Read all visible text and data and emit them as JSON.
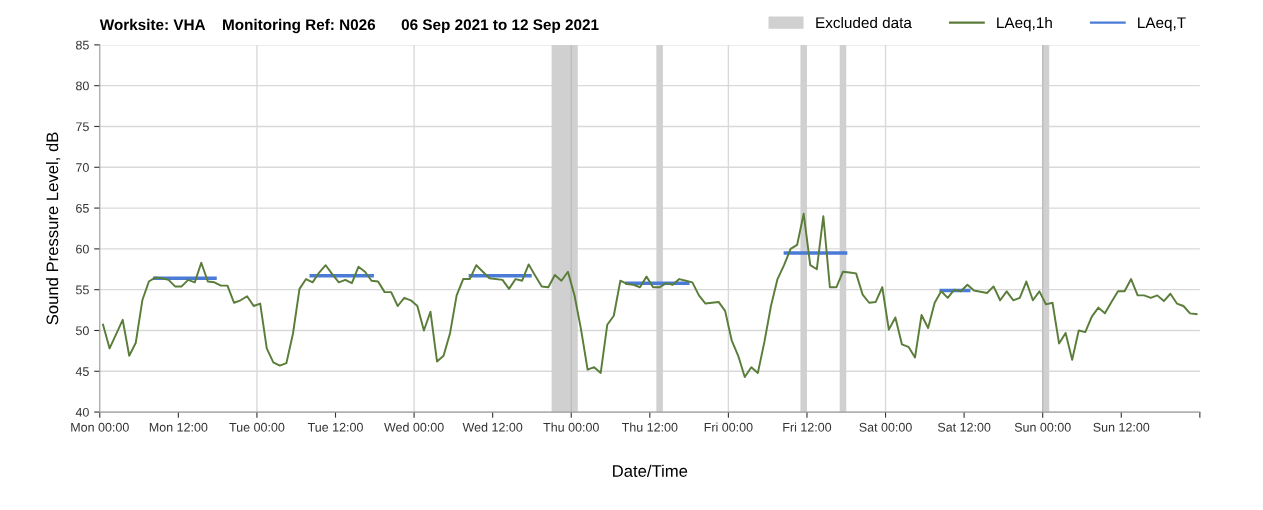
{
  "chart_data": {
    "type": "line",
    "title": "Worksite: VHA    Monitoring Ref: N026      06 Sep 2021 to 12 Sep 2021",
    "xlabel": "Date/Time",
    "ylabel": "Sound Pressure Level, dB",
    "xlim": [
      "2021-09-06T00:00",
      "2021-09-13T00:00"
    ],
    "xticks": [
      {
        "value": "2021-09-06T00:00",
        "label": "Mon 00:00"
      },
      {
        "value": "2021-09-06T12:00",
        "label": "Mon 12:00"
      },
      {
        "value": "2021-09-07T00:00",
        "label": "Tue 00:00"
      },
      {
        "value": "2021-09-07T12:00",
        "label": "Tue 12:00"
      },
      {
        "value": "2021-09-08T00:00",
        "label": "Wed 00:00"
      },
      {
        "value": "2021-09-08T12:00",
        "label": "Wed 12:00"
      },
      {
        "value": "2021-09-09T00:00",
        "label": "Thu 00:00"
      },
      {
        "value": "2021-09-09T12:00",
        "label": "Thu 12:00"
      },
      {
        "value": "2021-09-10T00:00",
        "label": "Fri 00:00"
      },
      {
        "value": "2021-09-10T12:00",
        "label": "Fri 12:00"
      },
      {
        "value": "2021-09-11T00:00",
        "label": "Sat 00:00"
      },
      {
        "value": "2021-09-11T12:00",
        "label": "Sat 12:00"
      },
      {
        "value": "2021-09-12T00:00",
        "label": "Sun 00:00"
      },
      {
        "value": "2021-09-12T12:00",
        "label": "Sun 12:00"
      },
      {
        "value": "2021-09-13T00:00",
        "label": null
      }
    ],
    "ylim": [
      40,
      85
    ],
    "yticks": [
      40,
      45,
      50,
      55,
      60,
      65,
      70,
      75,
      80,
      85
    ],
    "grid": "y",
    "legend": "top right",
    "marker": "none",
    "line_style": "solid",
    "ref_lines": [
      {
        "axis": "x",
        "value": "2021-09-07T00:00",
        "label": null,
        "color": "#d9d9d9"
      },
      {
        "axis": "x",
        "value": "2021-09-08T00:00",
        "label": null,
        "color": "#d9d9d9"
      },
      {
        "axis": "x",
        "value": "2021-09-09T00:00",
        "label": null,
        "color": "#bdbdbd"
      },
      {
        "axis": "x",
        "value": "2021-09-10T00:00",
        "label": null,
        "color": "#d9d9d9"
      },
      {
        "axis": "x",
        "value": "2021-09-11T00:00",
        "label": null,
        "color": "#d9d9d9"
      },
      {
        "axis": "x",
        "value": "2021-09-12T00:00",
        "label": null,
        "color": "#bdbdbd"
      }
    ],
    "bands": [
      {
        "axis": "x",
        "from": "2021-09-08T21:00",
        "to": "2021-09-09T01:00",
        "label": "Excluded data",
        "color": "#d0d0d0"
      },
      {
        "axis": "x",
        "from": "2021-09-09T13:00",
        "to": "2021-09-09T14:00",
        "label": null,
        "color": "#d0d0d0"
      },
      {
        "axis": "x",
        "from": "2021-09-10T11:00",
        "to": "2021-09-10T12:00",
        "label": null,
        "color": "#d0d0d0"
      },
      {
        "axis": "x",
        "from": "2021-09-10T17:00",
        "to": "2021-09-10T18:00",
        "label": null,
        "color": "#d0d0d0"
      },
      {
        "axis": "x",
        "from": "2021-09-12T00:00",
        "to": "2021-09-12T01:00",
        "label": null,
        "color": "#d0d0d0"
      }
    ],
    "series": [
      {
        "name": "LAeq,1h",
        "color": "#5b7d3a",
        "x": [
          "2021-09-06T00:30",
          "2021-09-06T01:30",
          "2021-09-06T03:30",
          "2021-09-06T04:30",
          "2021-09-06T05:30",
          "2021-09-06T06:30",
          "2021-09-06T07:30",
          "2021-09-06T08:30",
          "2021-09-06T09:30",
          "2021-09-06T10:30",
          "2021-09-06T11:30",
          "2021-09-06T12:30",
          "2021-09-06T13:30",
          "2021-09-06T14:30",
          "2021-09-06T15:30",
          "2021-09-06T16:30",
          "2021-09-06T17:30",
          "2021-09-06T18:30",
          "2021-09-06T19:30",
          "2021-09-06T20:30",
          "2021-09-06T21:30",
          "2021-09-06T22:30",
          "2021-09-06T23:30",
          "2021-09-07T00:30",
          "2021-09-07T01:30",
          "2021-09-07T02:30",
          "2021-09-07T03:30",
          "2021-09-07T04:30",
          "2021-09-07T05:30",
          "2021-09-07T06:30",
          "2021-09-07T07:30",
          "2021-09-07T08:30",
          "2021-09-07T09:30",
          "2021-09-07T10:30",
          "2021-09-07T11:30",
          "2021-09-07T12:30",
          "2021-09-07T13:30",
          "2021-09-07T14:30",
          "2021-09-07T15:30",
          "2021-09-07T16:30",
          "2021-09-07T17:30",
          "2021-09-07T18:30",
          "2021-09-07T19:30",
          "2021-09-07T20:30",
          "2021-09-07T21:30",
          "2021-09-07T22:30",
          "2021-09-07T23:30",
          "2021-09-08T00:30",
          "2021-09-08T01:30",
          "2021-09-08T02:30",
          "2021-09-08T03:30",
          "2021-09-08T04:30",
          "2021-09-08T05:30",
          "2021-09-08T06:30",
          "2021-09-08T07:30",
          "2021-09-08T08:30",
          "2021-09-08T09:30",
          "2021-09-08T10:30",
          "2021-09-08T11:30",
          "2021-09-08T13:30",
          "2021-09-08T14:30",
          "2021-09-08T15:30",
          "2021-09-08T16:30",
          "2021-09-08T17:30",
          "2021-09-08T18:30",
          "2021-09-08T19:30",
          "2021-09-08T20:30",
          "2021-09-08T21:30",
          "2021-09-08T22:30",
          "2021-09-08T23:30",
          "2021-09-09T00:30",
          "2021-09-09T01:30",
          "2021-09-09T02:30",
          "2021-09-09T03:30",
          "2021-09-09T04:30",
          "2021-09-09T05:30",
          "2021-09-09T06:30",
          "2021-09-09T07:30",
          "2021-09-09T08:30",
          "2021-09-09T09:30",
          "2021-09-09T10:30",
          "2021-09-09T11:30",
          "2021-09-09T12:30",
          "2021-09-09T13:30",
          "2021-09-09T14:30",
          "2021-09-09T15:30",
          "2021-09-09T16:30",
          "2021-09-09T17:30",
          "2021-09-09T18:30",
          "2021-09-09T19:30",
          "2021-09-09T20:30",
          "2021-09-09T21:30",
          "2021-09-09T22:30",
          "2021-09-09T23:30",
          "2021-09-10T00:30",
          "2021-09-10T01:30",
          "2021-09-10T02:30",
          "2021-09-10T03:30",
          "2021-09-10T04:30",
          "2021-09-10T05:30",
          "2021-09-10T06:30",
          "2021-09-10T07:30",
          "2021-09-10T08:30",
          "2021-09-10T09:30",
          "2021-09-10T10:30",
          "2021-09-10T11:30",
          "2021-09-10T12:30",
          "2021-09-10T13:30",
          "2021-09-10T14:30",
          "2021-09-10T15:30",
          "2021-09-10T16:30",
          "2021-09-10T17:30",
          "2021-09-10T18:30",
          "2021-09-10T19:30",
          "2021-09-10T20:30",
          "2021-09-10T21:30",
          "2021-09-10T22:30",
          "2021-09-10T23:30",
          "2021-09-11T00:30",
          "2021-09-11T01:30",
          "2021-09-11T02:30",
          "2021-09-11T03:30",
          "2021-09-11T04:30",
          "2021-09-11T05:30",
          "2021-09-11T06:30",
          "2021-09-11T07:30",
          "2021-09-11T08:30",
          "2021-09-11T09:30",
          "2021-09-11T10:30",
          "2021-09-11T11:30",
          "2021-09-11T12:30",
          "2021-09-11T13:30",
          "2021-09-11T15:30",
          "2021-09-11T16:30",
          "2021-09-11T17:30",
          "2021-09-11T18:30",
          "2021-09-11T19:30",
          "2021-09-11T20:30",
          "2021-09-11T21:30",
          "2021-09-11T22:30",
          "2021-09-11T23:30",
          "2021-09-12T00:30",
          "2021-09-12T01:30",
          "2021-09-12T02:30",
          "2021-09-12T03:30",
          "2021-09-12T04:30",
          "2021-09-12T05:30",
          "2021-09-12T06:30",
          "2021-09-12T07:30",
          "2021-09-12T08:30",
          "2021-09-12T09:30",
          "2021-09-12T10:30",
          "2021-09-12T11:30",
          "2021-09-12T12:30",
          "2021-09-12T13:30",
          "2021-09-12T14:30",
          "2021-09-12T15:30",
          "2021-09-12T16:30",
          "2021-09-12T17:30",
          "2021-09-12T18:30",
          "2021-09-12T19:30",
          "2021-09-12T20:30",
          "2021-09-12T21:30",
          "2021-09-12T22:30",
          "2021-09-12T23:30"
        ],
        "values": [
          50.7,
          47.8,
          51.3,
          46.9,
          48.5,
          53.7,
          56.0,
          56.5,
          56.4,
          56.2,
          55.4,
          55.4,
          56.2,
          55.9,
          58.3,
          56.0,
          55.9,
          55.5,
          55.5,
          53.4,
          53.7,
          54.2,
          53.0,
          53.3,
          47.8,
          46.1,
          45.7,
          46.0,
          49.6,
          55.1,
          56.3,
          55.9,
          57.1,
          58.0,
          56.9,
          55.9,
          56.2,
          55.8,
          57.8,
          57.2,
          56.1,
          56.0,
          54.7,
          54.7,
          53.0,
          54.0,
          53.7,
          53.0,
          50.0,
          52.3,
          46.2,
          46.9,
          49.7,
          54.3,
          56.3,
          56.3,
          58.0,
          57.2,
          56.4,
          56.2,
          55.1,
          56.3,
          56.1,
          58.1,
          56.7,
          55.4,
          55.3,
          56.8,
          56.1,
          57.2,
          54.3,
          50.1,
          45.2,
          45.5,
          44.8,
          50.7,
          51.8,
          56.1,
          55.7,
          55.6,
          55.3,
          56.6,
          55.3,
          55.3,
          55.8,
          55.6,
          56.3,
          56.1,
          55.9,
          54.3,
          53.3,
          53.4,
          53.5,
          52.4,
          48.8,
          46.9,
          44.3,
          45.5,
          44.8,
          48.6,
          53.0,
          56.3,
          58.0,
          60.0,
          60.5,
          64.3,
          58.0,
          57.5,
          64.0,
          55.3,
          55.3,
          57.2,
          57.1,
          57.0,
          54.4,
          53.4,
          53.5,
          55.3,
          50.1,
          51.6,
          48.3,
          48.0,
          46.7,
          51.9,
          50.3,
          53.4,
          54.8,
          54.0,
          55.0,
          54.8,
          55.6,
          54.9,
          54.6,
          55.4,
          53.7,
          54.8,
          53.7,
          54.0,
          56.0,
          53.7,
          54.8,
          53.2,
          53.4,
          48.4,
          49.7,
          46.4,
          50.0,
          49.8,
          51.7,
          52.8,
          52.1,
          53.5,
          54.8,
          54.8,
          56.3,
          54.3,
          54.3,
          54.0,
          54.3,
          53.6,
          54.5,
          53.3,
          53.0,
          52.1,
          52.0
        ]
      },
      {
        "name": "LAeq,T",
        "color": "#4a7bd6",
        "x": [
          "2021-09-06T08:24",
          "2021-09-06T17:36",
          "2021-09-07T01:00",
          "2021-09-07T08:18",
          "2021-09-07T17:36",
          "2021-09-08T01:00",
          "2021-09-08T08:36",
          "2021-09-08T17:42",
          "2021-09-09T01:00",
          "2021-09-09T08:30",
          "2021-09-09T17:48",
          "2021-09-10T01:00",
          "2021-09-10T08:42",
          "2021-09-10T17:54",
          "2021-09-11T01:00",
          "2021-09-11T08:30",
          "2021-09-11T12:42"
        ],
        "values": [
          56.4,
          56.4,
          null,
          56.7,
          56.7,
          null,
          56.7,
          56.7,
          null,
          55.8,
          55.8,
          null,
          59.5,
          59.5,
          null,
          54.9,
          54.9
        ]
      }
    ]
  }
}
